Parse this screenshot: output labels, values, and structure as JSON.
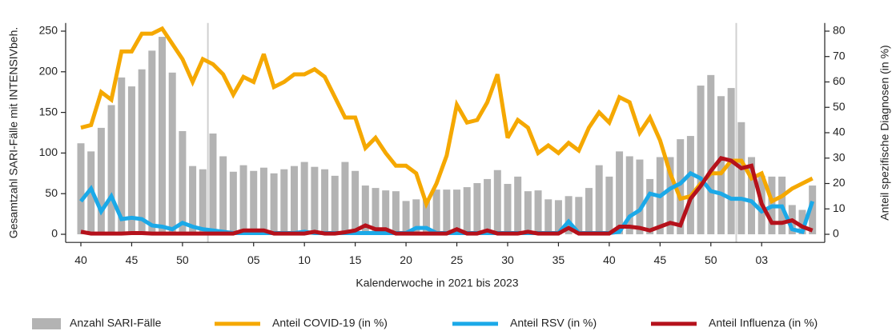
{
  "chart_data": {
    "type": "combo",
    "x_label": "Kalenderwoche in 2021 bis 2023",
    "y_label": "Gesamtzahl SARI-Fälle mit INTENSIVbeh.",
    "y2_label": "Anteil spezifische Diagnosen (in %)",
    "categories": [
      "40",
      null,
      null,
      null,
      null,
      "45",
      null,
      null,
      null,
      null,
      "50",
      null,
      null,
      null,
      null,
      null,
      null,
      "05",
      null,
      null,
      null,
      null,
      "10",
      null,
      null,
      null,
      null,
      "15",
      null,
      null,
      null,
      null,
      "20",
      null,
      null,
      null,
      null,
      "25",
      null,
      null,
      null,
      null,
      "30",
      null,
      null,
      null,
      null,
      "35",
      null,
      null,
      null,
      null,
      "40",
      null,
      null,
      null,
      null,
      "45",
      null,
      null,
      null,
      null,
      "50",
      null,
      null,
      null,
      null,
      "03",
      null,
      null,
      null,
      null,
      null
    ],
    "ylim": [
      -10,
      260
    ],
    "yticks": [
      0,
      50,
      100,
      150,
      200,
      250
    ],
    "y2lim": [
      -3.2,
      83.2
    ],
    "y2ticks": [
      0,
      10,
      20,
      30,
      40,
      50,
      60,
      70,
      80
    ],
    "series": [
      {
        "name": "Anzahl SARI-Fälle",
        "type": "bar",
        "color": "#b3b3b3",
        "values": [
          112,
          102,
          131,
          159,
          193,
          182,
          203,
          226,
          243,
          199,
          127,
          84,
          80,
          124,
          96,
          77,
          85,
          78,
          82,
          75,
          80,
          84,
          89,
          83,
          80,
          72,
          89,
          78,
          60,
          57,
          54,
          53,
          41,
          43,
          44,
          55,
          55,
          55,
          58,
          63,
          68,
          79,
          62,
          71,
          53,
          54,
          43,
          42,
          47,
          46,
          57,
          85,
          71,
          102,
          96,
          92,
          68,
          95,
          95,
          117,
          121,
          183,
          196,
          170,
          180,
          138,
          95,
          72,
          71,
          71,
          36,
          30,
          60
        ]
      },
      {
        "name": "Anteil COVID-19 (in %)",
        "type": "line",
        "axis": "y2",
        "color": "#f5a800",
        "values": [
          42,
          43,
          56,
          53,
          72,
          72,
          79,
          79,
          81,
          75,
          69,
          60,
          69,
          67,
          63,
          55,
          62,
          60,
          71,
          58,
          60,
          63,
          63,
          65,
          62,
          54,
          46,
          46,
          34,
          38,
          32,
          27,
          27,
          24,
          12,
          20,
          31,
          51,
          44,
          45,
          52,
          63,
          38,
          45,
          42,
          32,
          35,
          32,
          36,
          33,
          42,
          48,
          44,
          54,
          52,
          40,
          46,
          37,
          24,
          14,
          15,
          20,
          24,
          24,
          29,
          29,
          22,
          24,
          13,
          15,
          18,
          20,
          22
        ]
      },
      {
        "name": "Anteil RSV (in %)",
        "type": "line",
        "axis": "y2",
        "color": "#1ba9e8",
        "values": [
          13,
          18,
          9,
          15,
          6,
          6.5,
          6,
          3.5,
          3,
          2,
          4.5,
          3,
          2,
          1.5,
          1,
          0.5,
          0.5,
          0.5,
          0.5,
          0.5,
          0.5,
          0.5,
          1,
          0.5,
          0.5,
          0.5,
          0.5,
          0.5,
          0.5,
          0.5,
          0.5,
          0.5,
          0.5,
          2.5,
          2.5,
          0.5,
          0.5,
          0.5,
          0.5,
          0.5,
          0.5,
          0.5,
          0.5,
          0.5,
          0.5,
          0.5,
          0.5,
          0.5,
          5,
          0.5,
          0.5,
          0.5,
          0.5,
          1,
          7,
          9.5,
          16,
          15,
          18,
          20,
          24,
          22,
          17,
          16,
          14,
          14,
          13,
          9,
          11,
          11,
          2,
          1,
          13
        ]
      },
      {
        "name": "Anteil Influenza (in %)",
        "type": "line",
        "axis": "y2",
        "color": "#b5111b",
        "values": [
          1,
          0.3,
          0.3,
          0.3,
          0.3,
          0.5,
          0.5,
          0.3,
          0.3,
          0.3,
          0.3,
          0.3,
          0.3,
          0.3,
          0.3,
          0.3,
          1.5,
          1.5,
          1.5,
          0.3,
          0.3,
          0.3,
          0.3,
          1,
          0.3,
          0.3,
          0.8,
          1.5,
          3.5,
          2,
          2,
          0.3,
          0.3,
          0.3,
          0.3,
          0.3,
          0.3,
          2,
          0.3,
          0.3,
          1.5,
          0.3,
          0.3,
          0.3,
          1,
          0.3,
          0.3,
          0.3,
          2.5,
          0.3,
          0.3,
          0.3,
          0.3,
          3,
          3,
          2.5,
          1.5,
          3,
          4.5,
          3.5,
          14,
          19,
          25,
          30,
          29,
          26,
          27,
          12,
          4.5,
          4.5,
          5.5,
          3,
          1.5
        ]
      }
    ]
  }
}
